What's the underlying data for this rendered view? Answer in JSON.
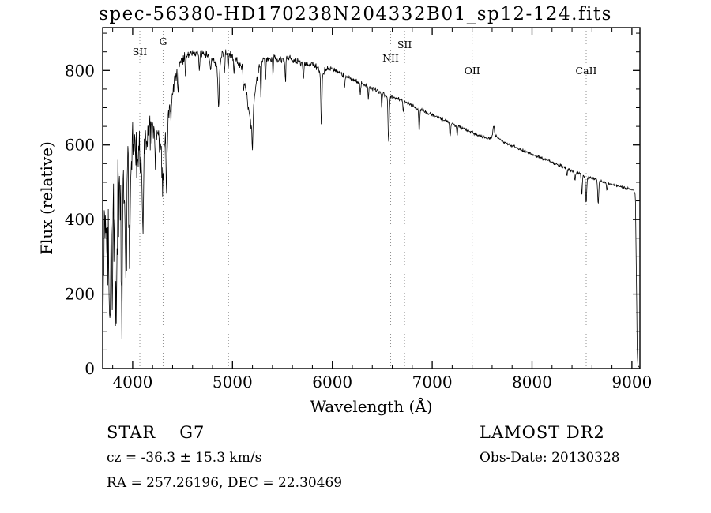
{
  "title": "spec-56380-HD170238N204332B01_sp12-124.fits",
  "chart_data": {
    "type": "line",
    "title": "spec-56380-HD170238N204332B01_sp12-124.fits",
    "xlabel": "Wavelength (Å)",
    "ylabel": "Flux (relative)",
    "xlim": [
      3700,
      9080
    ],
    "ylim": [
      0,
      915
    ],
    "x_ticks": [
      4000,
      5000,
      6000,
      7000,
      8000,
      9000
    ],
    "x_minor_step": 200,
    "y_ticks": [
      0,
      200,
      400,
      600,
      800
    ],
    "y_minor_step": 50,
    "line_color": "#000000",
    "grid_color": "#8f8f8f",
    "legend": "none",
    "grid": "dotted vertical lines at marked spectral features only",
    "spectral_lines": [
      {
        "label": "SII",
        "wavelength": 4072,
        "label_y": 70
      },
      {
        "label": "G",
        "wavelength": 4305,
        "label_y": 57
      },
      {
        "label": "",
        "wavelength": 4960,
        "label_y": 70
      },
      {
        "label": "NII",
        "wavelength": 6584,
        "label_y": 78
      },
      {
        "label": "SII",
        "wavelength": 6723,
        "label_y": 61
      },
      {
        "label": "OII",
        "wavelength": 7400,
        "label_y": 94
      },
      {
        "label": "CaII",
        "wavelength": 8542,
        "label_y": 94
      }
    ],
    "continuum_points": [
      [
        3700,
        120
      ],
      [
        3712,
        280
      ],
      [
        3725,
        360
      ],
      [
        3740,
        430
      ],
      [
        3758,
        300
      ],
      [
        3772,
        190
      ],
      [
        3790,
        310
      ],
      [
        3810,
        390
      ],
      [
        3830,
        300
      ],
      [
        3850,
        430
      ],
      [
        3870,
        450
      ],
      [
        3890,
        340
      ],
      [
        3910,
        500
      ],
      [
        3930,
        430
      ],
      [
        3950,
        540
      ],
      [
        3970,
        500
      ],
      [
        3990,
        570
      ],
      [
        4010,
        600
      ],
      [
        4030,
        620
      ],
      [
        4060,
        600
      ],
      [
        4090,
        570
      ],
      [
        4120,
        615
      ],
      [
        4150,
        640
      ],
      [
        4180,
        650
      ],
      [
        4220,
        645
      ],
      [
        4260,
        625
      ],
      [
        4300,
        565
      ],
      [
        4330,
        620
      ],
      [
        4360,
        700
      ],
      [
        4400,
        760
      ],
      [
        4440,
        795
      ],
      [
        4480,
        820
      ],
      [
        4520,
        835
      ],
      [
        4560,
        845
      ],
      [
        4600,
        850
      ],
      [
        4650,
        847
      ],
      [
        4700,
        845
      ],
      [
        4750,
        840
      ],
      [
        4800,
        832
      ],
      [
        4860,
        805
      ],
      [
        4900,
        845
      ],
      [
        4950,
        845
      ],
      [
        5000,
        840
      ],
      [
        5050,
        826
      ],
      [
        5100,
        806
      ],
      [
        5150,
        720
      ],
      [
        5185,
        650
      ],
      [
        5220,
        730
      ],
      [
        5260,
        800
      ],
      [
        5300,
        830
      ],
      [
        5350,
        830
      ],
      [
        5400,
        835
      ],
      [
        5450,
        830
      ],
      [
        5500,
        830
      ],
      [
        5550,
        832
      ],
      [
        5600,
        828
      ],
      [
        5650,
        822
      ],
      [
        5700,
        818
      ],
      [
        5750,
        820
      ],
      [
        5800,
        816
      ],
      [
        5850,
        806
      ],
      [
        5900,
        792
      ],
      [
        5950,
        808
      ],
      [
        6000,
        802
      ],
      [
        6050,
        796
      ],
      [
        6100,
        790
      ],
      [
        6150,
        784
      ],
      [
        6200,
        777
      ],
      [
        6250,
        771
      ],
      [
        6300,
        764
      ],
      [
        6350,
        758
      ],
      [
        6400,
        752
      ],
      [
        6450,
        746
      ],
      [
        6500,
        740
      ],
      [
        6550,
        732
      ],
      [
        6600,
        730
      ],
      [
        6650,
        725
      ],
      [
        6700,
        718
      ],
      [
        6750,
        712
      ],
      [
        6800,
        706
      ],
      [
        6850,
        698
      ],
      [
        6900,
        692
      ],
      [
        6950,
        686
      ],
      [
        7000,
        681
      ],
      [
        7050,
        675
      ],
      [
        7100,
        669
      ],
      [
        7150,
        663
      ],
      [
        7200,
        657
      ],
      [
        7250,
        651
      ],
      [
        7300,
        645
      ],
      [
        7350,
        640
      ],
      [
        7400,
        634
      ],
      [
        7450,
        628
      ],
      [
        7500,
        622
      ],
      [
        7550,
        617
      ],
      [
        7600,
        620
      ],
      [
        7640,
        626
      ],
      [
        7680,
        614
      ],
      [
        7720,
        608
      ],
      [
        7760,
        603
      ],
      [
        7800,
        598
      ],
      [
        7850,
        592
      ],
      [
        7900,
        586
      ],
      [
        7950,
        581
      ],
      [
        8000,
        575
      ],
      [
        8050,
        570
      ],
      [
        8100,
        564
      ],
      [
        8150,
        559
      ],
      [
        8200,
        553
      ],
      [
        8250,
        548
      ],
      [
        8300,
        542
      ],
      [
        8350,
        537
      ],
      [
        8400,
        531
      ],
      [
        8450,
        526
      ],
      [
        8500,
        521
      ],
      [
        8550,
        515
      ],
      [
        8600,
        510
      ],
      [
        8650,
        506
      ],
      [
        8700,
        502
      ],
      [
        8750,
        498
      ],
      [
        8800,
        494
      ],
      [
        8850,
        490
      ],
      [
        8900,
        487
      ],
      [
        8950,
        484
      ],
      [
        9000,
        481
      ],
      [
        9020,
        479
      ],
      [
        9035,
        465
      ],
      [
        9045,
        250
      ],
      [
        9052,
        60
      ],
      [
        9058,
        8
      ],
      [
        9080,
        3
      ]
    ],
    "noise_envelope": [
      [
        3700,
        150
      ],
      [
        3760,
        150
      ],
      [
        3820,
        145
      ],
      [
        3880,
        140
      ],
      [
        3940,
        120
      ],
      [
        4000,
        92
      ],
      [
        4060,
        82
      ],
      [
        4120,
        72
      ],
      [
        4180,
        63
      ],
      [
        4240,
        58
      ],
      [
        4300,
        55
      ],
      [
        4360,
        45
      ],
      [
        4420,
        34
      ],
      [
        4480,
        25
      ],
      [
        4540,
        20
      ],
      [
        4600,
        17
      ],
      [
        4700,
        15
      ],
      [
        4800,
        14
      ],
      [
        4900,
        14
      ],
      [
        5000,
        13
      ],
      [
        5200,
        13
      ],
      [
        5400,
        12
      ],
      [
        5600,
        12
      ],
      [
        5800,
        11
      ],
      [
        5900,
        10
      ],
      [
        6000,
        9
      ],
      [
        6200,
        8
      ],
      [
        6400,
        8
      ],
      [
        6600,
        7
      ],
      [
        6800,
        7
      ],
      [
        7000,
        6
      ],
      [
        7300,
        6
      ],
      [
        7500,
        5
      ],
      [
        8000,
        5
      ],
      [
        8500,
        5
      ],
      [
        8900,
        4
      ],
      [
        9030,
        4
      ],
      [
        9045,
        2
      ],
      [
        9080,
        1
      ]
    ],
    "absorption_lines": [
      [
        3798,
        140,
        5
      ],
      [
        3835,
        160,
        5
      ],
      [
        3890,
        180,
        5
      ],
      [
        3934,
        260,
        6
      ],
      [
        3969,
        240,
        6
      ],
      [
        4045,
        80,
        4
      ],
      [
        4102,
        200,
        6
      ],
      [
        4226,
        110,
        4
      ],
      [
        4305,
        70,
        8
      ],
      [
        4340,
        150,
        6
      ],
      [
        4383,
        90,
        4
      ],
      [
        4455,
        60,
        4
      ],
      [
        4530,
        50,
        4
      ],
      [
        4668,
        60,
        4
      ],
      [
        4780,
        45,
        4
      ],
      [
        4861,
        110,
        6
      ],
      [
        4920,
        60,
        4
      ],
      [
        4957,
        50,
        4
      ],
      [
        5015,
        50,
        4
      ],
      [
        5110,
        45,
        4
      ],
      [
        5200,
        100,
        5
      ],
      [
        5285,
        90,
        4
      ],
      [
        5330,
        60,
        4
      ],
      [
        5405,
        50,
        4
      ],
      [
        5530,
        60,
        4
      ],
      [
        5710,
        50,
        4
      ],
      [
        5890,
        150,
        5
      ],
      [
        6122,
        40,
        4
      ],
      [
        6280,
        35,
        4
      ],
      [
        6360,
        30,
        4
      ],
      [
        6495,
        40,
        4
      ],
      [
        6563,
        120,
        6
      ],
      [
        6710,
        30,
        4
      ],
      [
        6870,
        60,
        5
      ],
      [
        7180,
        35,
        5
      ],
      [
        7250,
        25,
        4
      ],
      [
        8350,
        25,
        4
      ],
      [
        8430,
        25,
        4
      ],
      [
        8498,
        55,
        5
      ],
      [
        8542,
        75,
        5
      ],
      [
        8662,
        65,
        5
      ],
      [
        8750,
        20,
        4
      ]
    ],
    "emission_bumps": [
      [
        5577,
        18,
        4
      ],
      [
        7615,
        28,
        8
      ]
    ],
    "seed": 20130328
  },
  "footer": {
    "left": {
      "object_type": "STAR",
      "subclass": "G7",
      "cz": "cz = -36.3 ± 15.3 km/s",
      "coords": "RA = 257.26196, DEC =  22.30469"
    },
    "right": {
      "survey": "LAMOST DR2",
      "obs_date": "Obs-Date: 20130328"
    }
  }
}
